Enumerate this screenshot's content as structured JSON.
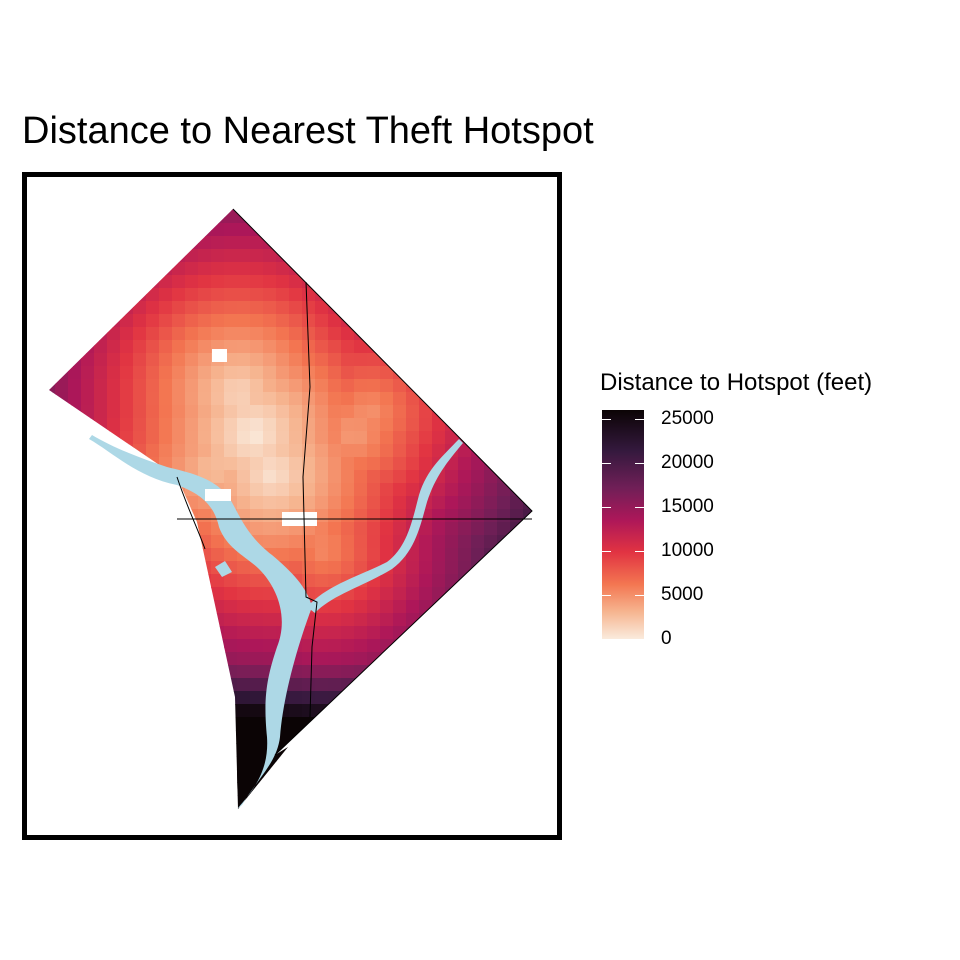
{
  "map": {
    "title": "Distance to Nearest Theft Hotspot",
    "fill_variable": "Distance to Hotspot (feet)",
    "frame_color": "#000000",
    "water_color": "#add8e6",
    "boundary_line_color": "#000000"
  },
  "legend": {
    "title": "Distance to Hotspot (feet)",
    "range": [
      0,
      26000
    ],
    "ticks": [
      {
        "value": 0,
        "label": "0"
      },
      {
        "value": 5000,
        "label": "5000"
      },
      {
        "value": 10000,
        "label": "10000"
      },
      {
        "value": 15000,
        "label": "15000"
      },
      {
        "value": 20000,
        "label": "20000"
      },
      {
        "value": 25000,
        "label": "25000"
      }
    ],
    "palette": [
      "#faebdd",
      "#f6b48f",
      "#f37651",
      "#e13342",
      "#ad1759",
      "#701f57",
      "#35193e",
      "#0b0405"
    ]
  }
}
